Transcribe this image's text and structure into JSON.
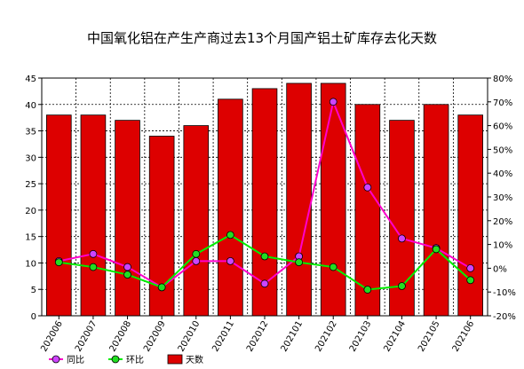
{
  "chart_data": {
    "type": "bar",
    "title": "中国氧化铝在产生产商过去13个月国产铝土矿库存去化天数",
    "categories": [
      "202006",
      "202007",
      "202008",
      "202009",
      "202010",
      "202011",
      "202012",
      "202101",
      "202102",
      "202103",
      "202104",
      "202105",
      "202106"
    ],
    "left_axis": {
      "ylim": [
        0,
        45
      ],
      "ticks": [
        "0",
        "5",
        "10",
        "15",
        "20",
        "25",
        "30",
        "35",
        "40",
        "45"
      ]
    },
    "right_axis": {
      "ylim": [
        -20,
        80
      ],
      "ticks": [
        "-20%",
        "-10%",
        "0%",
        "10%",
        "20%",
        "30%",
        "40%",
        "50%",
        "60%",
        "70%",
        "80%"
      ]
    },
    "series": [
      {
        "name": "天数",
        "kind": "bar",
        "axis": "left",
        "color": "#dd0000",
        "values": [
          38,
          38,
          37,
          34,
          36,
          41,
          43,
          44,
          44,
          40,
          37,
          40,
          38
        ]
      },
      {
        "name": "同比",
        "kind": "line",
        "axis": "right",
        "color": "#ff00cc",
        "marker_fill": "#cc44ff",
        "values": [
          3,
          6,
          0.5,
          -8,
          3,
          3,
          -6.5,
          5,
          70,
          34,
          12.5,
          8.5,
          0
        ]
      },
      {
        "name": "环比",
        "kind": "line",
        "axis": "right",
        "color": "#00ee00",
        "marker_fill": "#22dd22",
        "values": [
          2.5,
          0.5,
          -2.7,
          -8,
          6,
          14,
          5,
          2.5,
          0.5,
          -9,
          -7.5,
          8,
          -5
        ]
      }
    ],
    "legend": {
      "position": "bottom-left",
      "items": [
        "同比",
        "环比",
        "天数"
      ]
    },
    "grid": true
  }
}
